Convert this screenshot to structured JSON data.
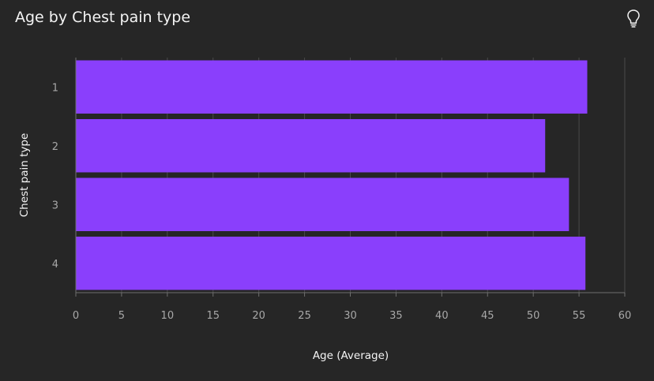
{
  "header": {
    "title": "Age by Chest pain type",
    "insight_icon": "lightbulb-icon"
  },
  "colors": {
    "background": "#262626",
    "bar": "#8a3ffc",
    "grid": "#4a4a4a",
    "axis": "#6f6f6f",
    "tick_text": "#a8a8a8",
    "title_text": "#f4f4f4"
  },
  "chart_data": {
    "type": "bar",
    "orientation": "horizontal",
    "title": "Age by Chest pain type",
    "xlabel": "Age (Average)",
    "ylabel": "Chest pain type",
    "categories": [
      "1",
      "2",
      "3",
      "4"
    ],
    "values": [
      55.9,
      51.3,
      53.9,
      55.7
    ],
    "xlim": [
      0,
      60
    ],
    "xticks": [
      0,
      5,
      10,
      15,
      20,
      25,
      30,
      35,
      40,
      45,
      50,
      55,
      60
    ],
    "xtick_labels": [
      "0",
      "5",
      "10",
      "15",
      "20",
      "25",
      "30",
      "35",
      "40",
      "45",
      "50",
      "55",
      "60"
    ],
    "grid": "vertical"
  }
}
